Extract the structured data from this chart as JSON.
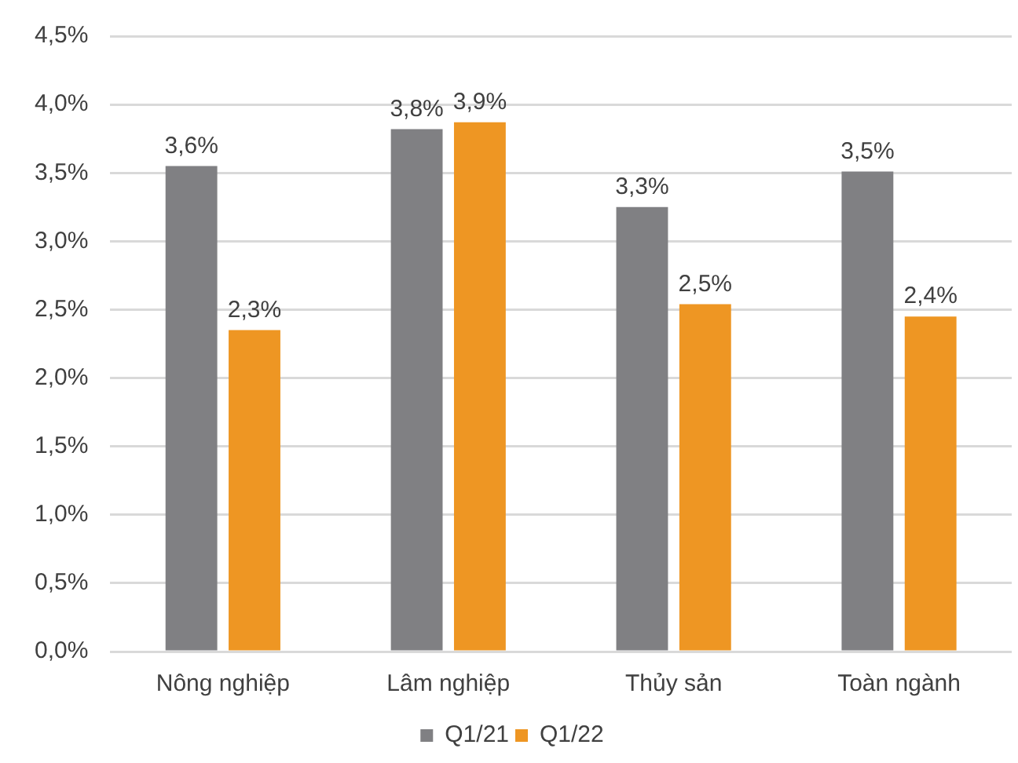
{
  "chart_data": {
    "type": "bar",
    "categories": [
      "Nông nghiệp",
      "Lâm nghiệp",
      "Thủy sản",
      "Toàn ngành"
    ],
    "series": [
      {
        "name": "Q1/21",
        "color": "#808083",
        "values": [
          3.55,
          3.82,
          3.25,
          3.51
        ],
        "value_labels": [
          "3,6%",
          "3,8%",
          "3,3%",
          "3,5%"
        ]
      },
      {
        "name": "Q1/22",
        "color": "#ee9623",
        "values": [
          2.35,
          3.87,
          2.54,
          2.45
        ],
        "value_labels": [
          "2,3%",
          "3,9%",
          "2,5%",
          "2,4%"
        ]
      }
    ],
    "ylim": [
      0,
      4.5
    ],
    "yticks": [
      {
        "value": 0,
        "label": "0,0%"
      },
      {
        "value": 0.5,
        "label": "0,5%"
      },
      {
        "value": 1,
        "label": "1,0%"
      },
      {
        "value": 1.5,
        "label": "1,5%"
      },
      {
        "value": 2,
        "label": "2,0%"
      },
      {
        "value": 2.5,
        "label": "2,5%"
      },
      {
        "value": 3,
        "label": "3,0%"
      },
      {
        "value": 3.5,
        "label": "3,5%"
      },
      {
        "value": 4,
        "label": "4,0%"
      },
      {
        "value": 4.5,
        "label": "4,5%"
      }
    ],
    "grid": "y",
    "legend": "bottom"
  }
}
